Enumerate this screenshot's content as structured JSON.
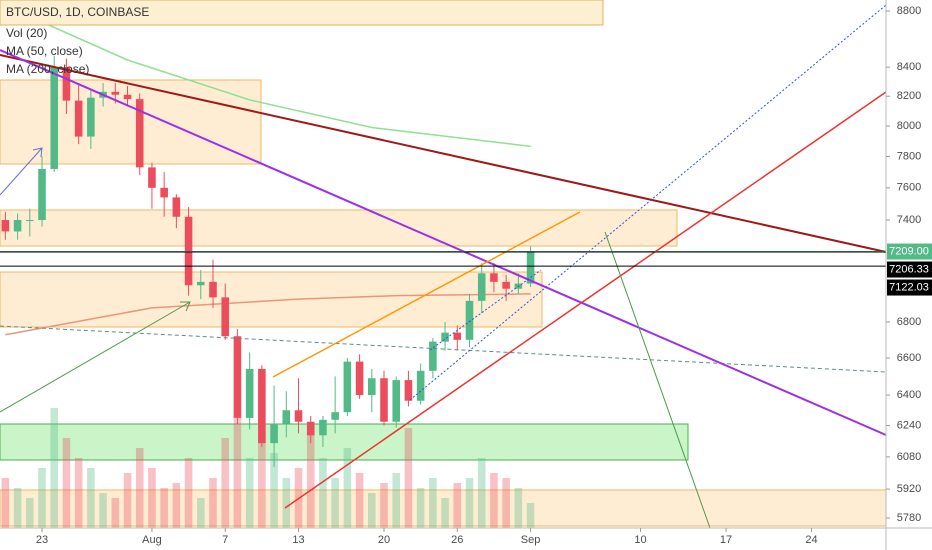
{
  "chart_data": {
    "type": "candlestick",
    "title": "BTC/USD, 1D, COINBASE",
    "legend": [
      "Vol (20)",
      "MA (50, close)",
      "MA (200, close)"
    ],
    "log_scale": true,
    "up_color": "#53b987",
    "down_color": "#eb4d5c",
    "x": [
      20,
      21,
      22,
      23,
      24,
      25,
      26,
      27,
      28,
      29,
      30,
      31,
      32,
      33,
      34,
      35,
      36,
      37,
      38,
      39,
      40,
      41,
      42,
      43,
      44,
      45,
      46,
      47,
      48,
      49,
      50,
      51,
      52,
      53,
      54,
      55,
      56,
      57,
      58,
      59,
      60,
      61,
      62,
      63
    ],
    "open": [
      7400,
      7330,
      7400,
      7400,
      7720,
      8400,
      8170,
      7930,
      8190,
      8230,
      8210,
      8180,
      7730,
      7600,
      7540,
      7420,
      7010,
      7030,
      6940,
      6720,
      6280,
      6540,
      6150,
      6250,
      6320,
      6260,
      6190,
      6270,
      6310,
      6580,
      6400,
      6490,
      6260,
      6480,
      6370,
      6530,
      6690,
      6740,
      6700,
      6920,
      7080,
      7030,
      6990,
      7020
    ],
    "high": [
      7450,
      7440,
      7470,
      7800,
      8480,
      8460,
      8290,
      8240,
      8290,
      8290,
      8270,
      8220,
      7760,
      7700,
      7560,
      7480,
      7100,
      7160,
      7020,
      6760,
      6630,
      6560,
      6450,
      6420,
      6490,
      6290,
      6290,
      6500,
      6600,
      6620,
      6540,
      6530,
      6500,
      6530,
      6570,
      6710,
      6800,
      6780,
      6960,
      7140,
      7140,
      7070,
      7080,
      7240
    ],
    "low": [
      7280,
      7280,
      7300,
      7360,
      7700,
      8080,
      7880,
      7850,
      8130,
      8150,
      8140,
      7680,
      7470,
      7420,
      7350,
      6950,
      6930,
      6880,
      6700,
      6250,
      6220,
      6130,
      6030,
      6180,
      6200,
      6150,
      6130,
      6200,
      6290,
      6380,
      6310,
      6240,
      6230,
      6340,
      6350,
      6490,
      6640,
      6640,
      6660,
      6850,
      6970,
      6920,
      6960,
      7000
    ],
    "close": [
      7330,
      7400,
      7400,
      7720,
      8400,
      8170,
      7930,
      8190,
      8230,
      8210,
      8180,
      7730,
      7600,
      7540,
      7420,
      7010,
      7030,
      6940,
      6720,
      6280,
      6540,
      6150,
      6250,
      6320,
      6260,
      6190,
      6270,
      6310,
      6580,
      6400,
      6490,
      6260,
      6480,
      6370,
      6530,
      6690,
      6740,
      6700,
      6920,
      7080,
      7030,
      6990,
      7020,
      7209
    ],
    "volume": [
      50,
      40,
      30,
      60,
      120,
      90,
      70,
      60,
      35,
      30,
      55,
      80,
      60,
      40,
      45,
      70,
      30,
      50,
      90,
      110,
      70,
      95,
      75,
      50,
      60,
      100,
      70,
      50,
      80,
      55,
      35,
      45,
      55,
      100,
      40,
      50,
      30,
      45,
      50,
      70,
      55,
      50,
      40,
      25
    ],
    "indicators": [
      {
        "name": "MA (200, close)",
        "color": "#8fe08f",
        "x": [
          22,
          30,
          40,
          50,
          63
        ],
        "values": [
          8760,
          8450,
          8175,
          7990,
          7866
        ]
      },
      {
        "name": "MA (50, close)",
        "color": "#e9967a",
        "x": [
          20,
          32,
          44,
          52,
          63
        ],
        "values": [
          6728,
          6880,
          6930,
          6950,
          6960
        ]
      }
    ],
    "price_labels": [
      {
        "value": 7209,
        "label": "7209.00",
        "color": "#53b987"
      },
      {
        "value": 7206.33,
        "label": "7206.33",
        "color": "#000000"
      },
      {
        "value": 7122.03,
        "label": "7122.03",
        "color": "#000000"
      }
    ],
    "xlim": [
      19.56,
      92.1
    ],
    "xticks": [
      {
        "value": 23,
        "label": "23"
      },
      {
        "value": 32,
        "label": "Aug"
      },
      {
        "value": 38,
        "label": "7"
      },
      {
        "value": 44,
        "label": "13"
      },
      {
        "value": 51,
        "label": "20"
      },
      {
        "value": 57,
        "label": "26"
      },
      {
        "value": 63,
        "label": "Sep"
      },
      {
        "value": 72,
        "label": "10"
      },
      {
        "value": 79,
        "label": "17"
      },
      {
        "value": 86,
        "label": "24"
      }
    ],
    "ylim": [
      5732,
      8881
    ],
    "yticks": [
      5780,
      5920,
      6080,
      6240,
      6400,
      6600,
      6800,
      7400,
      7600,
      7800,
      8000,
      8200,
      8400,
      8800
    ]
  }
}
